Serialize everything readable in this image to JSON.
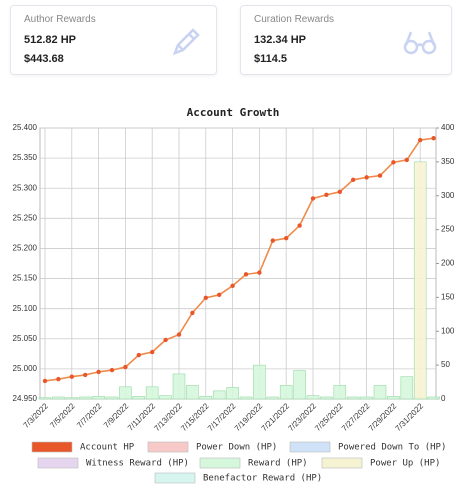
{
  "cards": [
    {
      "title": "Author Rewards",
      "hp": "512.82 HP",
      "usd": "$443.68"
    },
    {
      "title": "Curation Rewards",
      "hp": "132.34 HP",
      "usd": "$114.5"
    }
  ],
  "chart_data": {
    "type": "line",
    "title": "Account Growth",
    "categories": [
      "7/3/2022",
      null,
      "7/5/2022",
      null,
      "7/7/2022",
      null,
      "7/9/2022",
      null,
      "7/11/2022",
      null,
      "7/13/2022",
      null,
      "7/15/2022",
      null,
      "7/17/2022",
      null,
      "7/19/2022",
      null,
      "7/21/2022",
      null,
      "7/23/2022",
      null,
      "7/25/2022",
      null,
      "7/27/2022",
      null,
      "7/29/2022",
      null,
      "7/31/2022",
      null
    ],
    "ylim": [
      24.95,
      25.4
    ],
    "yticks": [
      {
        "value": 24.95,
        "label": "24.950"
      },
      {
        "value": 25.0,
        "label": "25.000"
      },
      {
        "value": 25.05,
        "label": "25.050"
      },
      {
        "value": 25.1,
        "label": "25.100"
      },
      {
        "value": 25.15,
        "label": "25.150"
      },
      {
        "value": 25.2,
        "label": "25.200"
      },
      {
        "value": 25.25,
        "label": "25.250"
      },
      {
        "value": 25.3,
        "label": "25.300"
      },
      {
        "value": 25.35,
        "label": "25.350"
      },
      {
        "value": 25.4,
        "label": "25.400"
      }
    ],
    "y2lim": [
      0,
      400
    ],
    "y2ticks": [
      0,
      50,
      100,
      150,
      200,
      250,
      300,
      350,
      400
    ],
    "grid": true,
    "series": [
      {
        "name": "Account HP",
        "type": "line",
        "color": "#e8572a",
        "line_color": "#f08a4b",
        "values": [
          24.98,
          24.983,
          24.987,
          24.99,
          24.995,
          24.998,
          25.003,
          25.023,
          25.028,
          25.048,
          25.057,
          25.093,
          25.118,
          25.123,
          25.138,
          25.157,
          25.16,
          25.213,
          25.217,
          25.238,
          25.283,
          25.289,
          25.294,
          25.314,
          25.318,
          25.321,
          25.343,
          25.347,
          25.38,
          25.383
        ]
      },
      {
        "name": "Power Down (HP)",
        "type": "bar",
        "axis": "y2",
        "color": "#f7c9c9",
        "values": [
          0,
          0,
          0,
          0,
          0,
          0,
          0,
          0,
          0,
          0,
          0,
          0,
          0,
          0,
          0,
          0,
          0,
          0,
          0,
          0,
          0,
          0,
          0,
          0,
          0,
          0,
          0,
          0,
          0,
          0
        ]
      },
      {
        "name": "Powered Down To (HP)",
        "type": "bar",
        "axis": "y2",
        "color": "#cfe2f7",
        "values": [
          0,
          0,
          0,
          0,
          0,
          0,
          0,
          0,
          0,
          0,
          0,
          0,
          0,
          0,
          0,
          0,
          0,
          0,
          0,
          0,
          0,
          0,
          0,
          0,
          0,
          0,
          0,
          0,
          0,
          0
        ]
      },
      {
        "name": "Witness Reward (HP)",
        "type": "bar",
        "axis": "y2",
        "color": "#e6d5ee",
        "values": [
          0,
          0,
          0,
          0,
          0,
          0,
          0,
          0,
          0,
          0,
          0,
          0,
          0,
          0,
          0,
          0,
          0,
          0,
          0,
          0,
          0,
          0,
          0,
          0,
          0,
          0,
          0,
          0,
          0,
          0
        ]
      },
      {
        "name": "Reward (HP)",
        "type": "bar",
        "axis": "y2",
        "color": "#d5f7dc",
        "values": [
          2,
          3,
          2,
          3,
          4,
          3,
          18,
          4,
          18,
          5,
          37,
          20,
          4,
          12,
          17,
          3,
          50,
          3,
          20,
          42,
          5,
          3,
          20,
          3,
          3,
          20,
          4,
          33,
          2,
          3
        ]
      },
      {
        "name": "Power Up (HP)",
        "type": "bar",
        "axis": "y2",
        "color": "#f6f3d3",
        "values": [
          0,
          0,
          0,
          0,
          0,
          0,
          0,
          0,
          0,
          0,
          0,
          0,
          0,
          0,
          0,
          0,
          0,
          0,
          0,
          0,
          0,
          0,
          0,
          0,
          0,
          0,
          0,
          0,
          350,
          0
        ]
      },
      {
        "name": "Benefactor Reward (HP)",
        "type": "bar",
        "axis": "y2",
        "color": "#d7f5ef",
        "values": [
          0,
          0,
          0,
          0,
          0,
          0,
          0,
          0,
          0,
          0,
          0,
          0,
          0,
          0,
          0,
          0,
          0,
          0,
          0,
          0,
          0,
          0,
          0,
          0,
          0,
          0,
          0,
          0,
          0,
          0
        ]
      }
    ]
  }
}
